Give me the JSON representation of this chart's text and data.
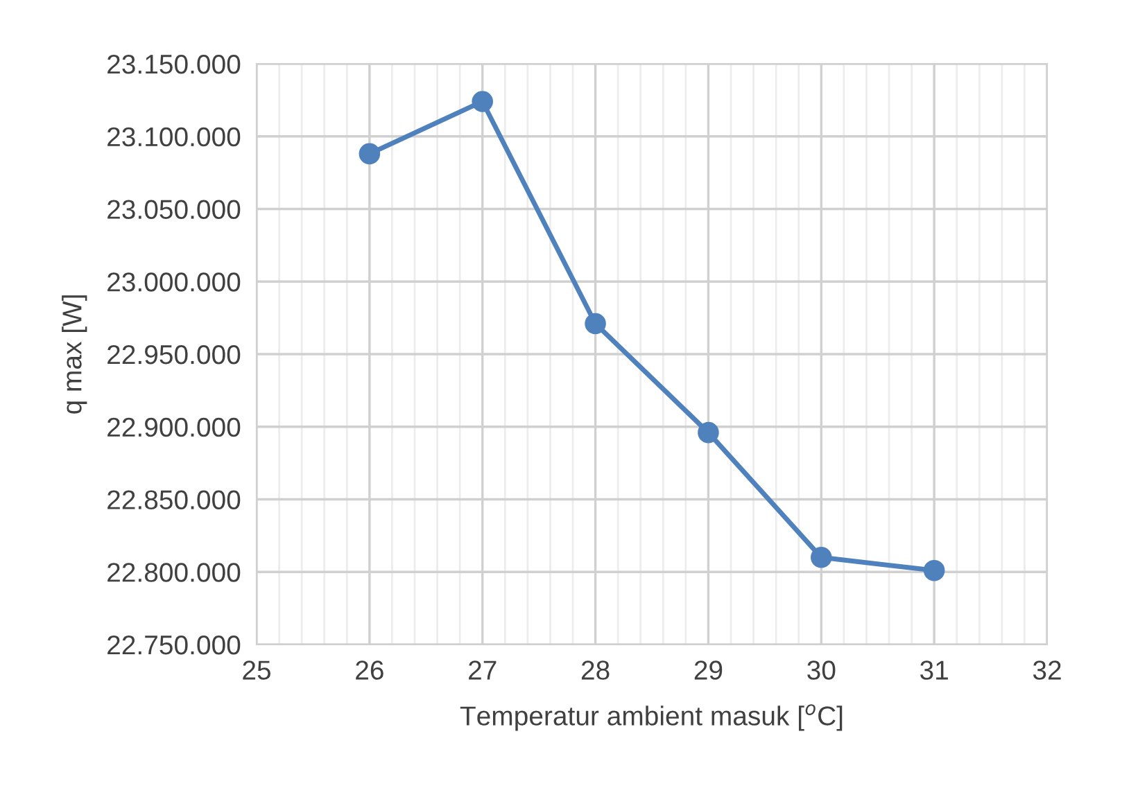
{
  "chart_data": {
    "type": "line",
    "xlabel": "Temperatur ambient masuk [$^{o}$C]",
    "ylabel": "q max [W]",
    "x": [
      26,
      27,
      28,
      29,
      30,
      31
    ],
    "series": [
      {
        "color": "#4f81bd",
        "values": [
          23088000,
          23124000,
          22971000,
          22896000,
          22810000,
          22801000
        ]
      }
    ],
    "xlim": [
      25,
      32
    ],
    "xticks": [
      25,
      26,
      27,
      28,
      29,
      30,
      31,
      32
    ],
    "ylim": [
      22750000,
      23150000
    ],
    "yticks": [
      {
        "value": 22750000,
        "label": "22.750.000"
      },
      {
        "value": 22800000,
        "label": "22.800.000"
      },
      {
        "value": 22850000,
        "label": "22.850.000"
      },
      {
        "value": 22900000,
        "label": "22.900.000"
      },
      {
        "value": 22950000,
        "label": "22.950.000"
      },
      {
        "value": 23000000,
        "label": "23.000.000"
      },
      {
        "value": 23050000,
        "label": "23.050.000"
      },
      {
        "value": 23100000,
        "label": "23.100.000"
      },
      {
        "value": 23150000,
        "label": "23.150.000"
      }
    ],
    "grid": true,
    "marker": "circle",
    "line_style": "solid"
  }
}
